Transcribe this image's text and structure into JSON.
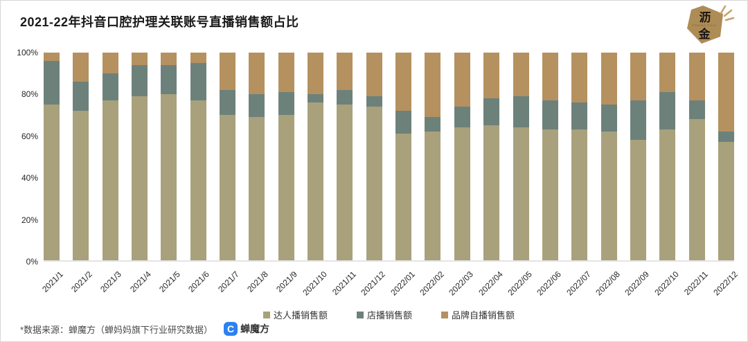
{
  "header": {
    "title": "2021-22年抖音口腔护理关联账号直播销售额占比",
    "brand": {
      "char_top": "沥",
      "char_bottom": "金",
      "tagline": "FINDING GOLD",
      "color": "#ae8c55"
    }
  },
  "chart_data": {
    "type": "bar",
    "stacked": true,
    "title": "2021-22年抖音口腔护理关联账号直播销售额占比",
    "unit": "percent",
    "ylim": [
      0,
      100
    ],
    "yticks": [
      "0%",
      "20%",
      "40%",
      "60%",
      "80%",
      "100%"
    ],
    "grid": false,
    "legend_position": "bottom",
    "categories": [
      "2021/1",
      "2021/2",
      "2021/3",
      "2021/4",
      "2021/5",
      "2021/6",
      "2021/7",
      "2021/8",
      "2021/9",
      "2021/10",
      "2021/11",
      "2021/12",
      "2022/01",
      "2022/02",
      "2022/03",
      "2022/04",
      "2022/05",
      "2022/06",
      "2022/07",
      "2022/08",
      "2022/09",
      "2022/10",
      "2022/11",
      "2022/12"
    ],
    "series": [
      {
        "key": "talent",
        "name": "达人播销售额",
        "color": "#a8a17c",
        "values": [
          75,
          72,
          77,
          79,
          80,
          77,
          70,
          69,
          70,
          76,
          75,
          74,
          61,
          62,
          64,
          65,
          64,
          63,
          63,
          62,
          58,
          63,
          68,
          57
        ]
      },
      {
        "key": "store",
        "name": "店播销售额",
        "color": "#6d817b",
        "values": [
          21,
          14,
          13,
          15,
          14,
          18,
          12,
          11,
          11,
          4,
          7,
          5,
          11,
          7,
          10,
          13,
          15,
          14,
          13,
          13,
          19,
          18,
          9,
          5
        ]
      },
      {
        "key": "brand",
        "name": "品牌自播销售额",
        "color": "#b5915f",
        "values": [
          4,
          14,
          10,
          6,
          6,
          5,
          18,
          20,
          19,
          20,
          18,
          21,
          28,
          31,
          26,
          22,
          21,
          23,
          24,
          25,
          23,
          19,
          23,
          38
        ]
      }
    ]
  },
  "footer": {
    "source_note": "*数据来源：蝉魔方（蝉妈妈旗下行业研究数据）",
    "logo_text": "蝉魔方"
  }
}
